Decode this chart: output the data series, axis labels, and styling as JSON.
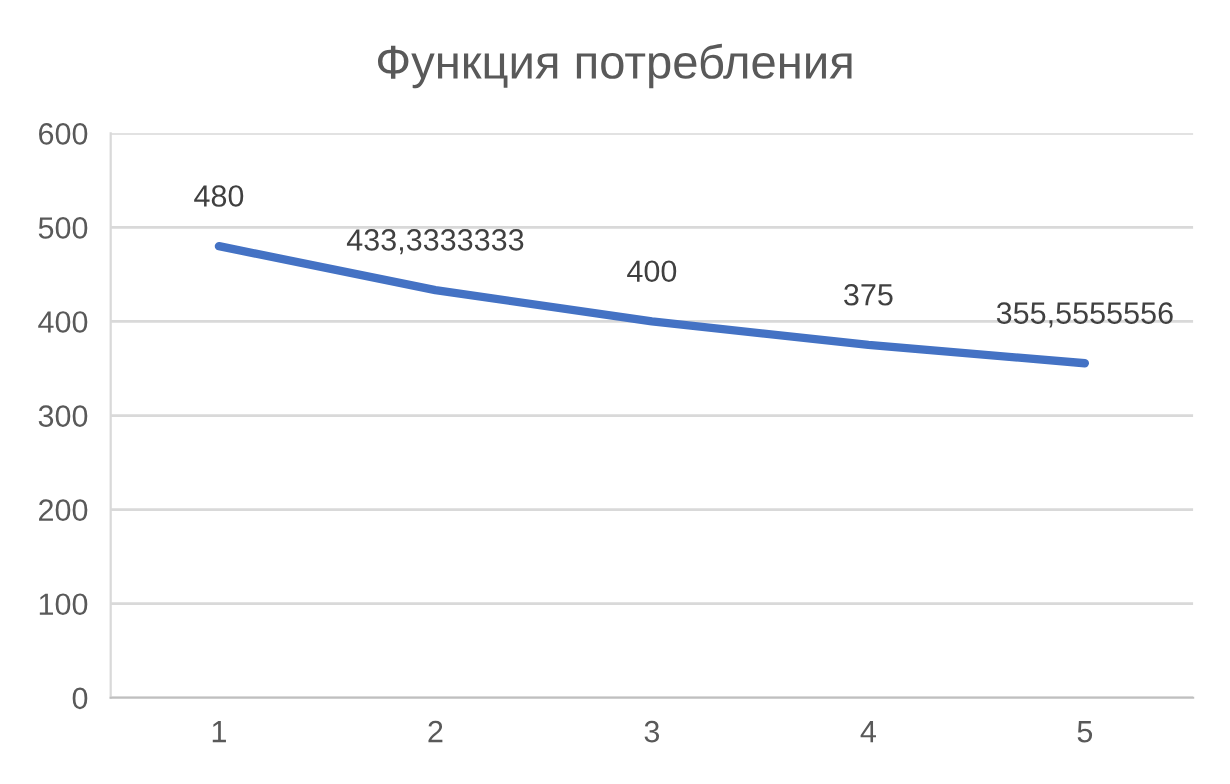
{
  "chart_data": {
    "type": "line",
    "title": "Функция потребления",
    "categories": [
      "1",
      "2",
      "3",
      "4",
      "5"
    ],
    "series": [
      {
        "color": "#4472c4",
        "values": [
          480,
          433.3333333,
          400,
          375,
          355.5555556
        ],
        "value_labels": [
          "480",
          "433,3333333",
          "400",
          "375",
          "355,5555556"
        ]
      }
    ],
    "ylim": [
      0,
      600
    ],
    "yticks": [
      0,
      100,
      200,
      300,
      400,
      500,
      600
    ],
    "grid": "y",
    "legend": false,
    "marker": "none",
    "line_style": "solid"
  }
}
